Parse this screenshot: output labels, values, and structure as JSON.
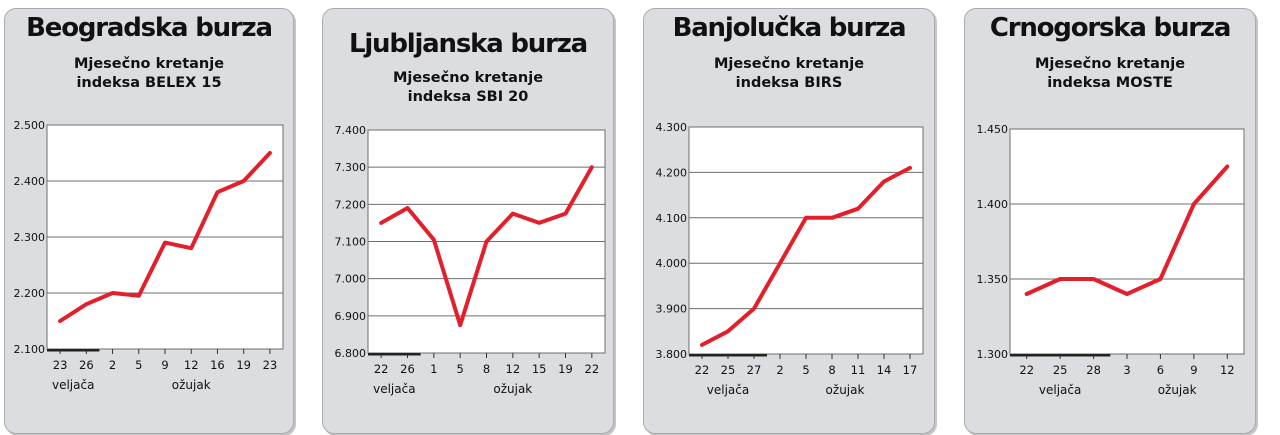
{
  "colors": {
    "panel_bg": "#dcdde0",
    "plot_bg": "#ffffff",
    "line": "#e21f2b",
    "grid": "#6d6d6d"
  },
  "panels": [
    {
      "title": "Beogradska burza",
      "subtitle_line1": "Mjesečno kretanje",
      "subtitle_line2": "indeksa BELEX 15"
    },
    {
      "title": "Ljubljanska burza",
      "subtitle_line1": "Mjesečno kretanje",
      "subtitle_line2": "indeksa SBI 20"
    },
    {
      "title": "Banjolučka burza",
      "subtitle_line1": "Mjesečno kretanje",
      "subtitle_line2": "indeksa BIRS"
    },
    {
      "title": "Crnogorska burza",
      "subtitle_line1": "Mjesečno kretanje",
      "subtitle_line2": "indeksa MOSTE"
    }
  ],
  "chart_data": [
    {
      "type": "line",
      "title": "Beogradska burza",
      "subtitle": "Mjesečno kretanje indeksa BELEX 15",
      "categories": [
        "23",
        "26",
        "2",
        "5",
        "9",
        "12",
        "16",
        "19",
        "23"
      ],
      "values": [
        2150,
        2180,
        2200,
        2195,
        2290,
        2280,
        2380,
        2400,
        2450
      ],
      "ylim": [
        2100,
        2500
      ],
      "yticks": [
        2100,
        2200,
        2300,
        2400,
        2500
      ],
      "ytick_labels": [
        "2.100",
        "2.200",
        "2.300",
        "2.400",
        "2.500"
      ],
      "groups": [
        {
          "label": "veljača",
          "from": 0,
          "to": 1
        },
        {
          "label": "ožujak",
          "from": 2,
          "to": 8
        }
      ],
      "grid": "horizontal"
    },
    {
      "type": "line",
      "title": "Ljubljanska burza",
      "subtitle": "Mjesečno kretanje indeksa SBI 20",
      "categories": [
        "22",
        "26",
        "1",
        "5",
        "8",
        "12",
        "15",
        "19",
        "22"
      ],
      "values": [
        7150,
        7190,
        7105,
        6875,
        7100,
        7175,
        7150,
        7175,
        7300
      ],
      "ylim": [
        6800,
        7400
      ],
      "yticks": [
        6800,
        6900,
        7000,
        7100,
        7200,
        7300,
        7400
      ],
      "ytick_labels": [
        "6.800",
        "6.900",
        "7.000",
        "7.100",
        "7.200",
        "7.300",
        "7.400"
      ],
      "groups": [
        {
          "label": "veljača",
          "from": 0,
          "to": 1
        },
        {
          "label": "ožujak",
          "from": 2,
          "to": 8
        }
      ],
      "grid": "horizontal"
    },
    {
      "type": "line",
      "title": "Banjolučka burza",
      "subtitle": "Mjesečno kretanje indeksa BIRS",
      "categories": [
        "22",
        "25",
        "27",
        "2",
        "5",
        "8",
        "11",
        "14",
        "17"
      ],
      "values": [
        3820,
        3850,
        3900,
        4000,
        4100,
        4100,
        4120,
        4180,
        4210
      ],
      "ylim": [
        3800,
        4300
      ],
      "yticks": [
        3800,
        3900,
        4000,
        4100,
        4200,
        4300
      ],
      "ytick_labels": [
        "3.800",
        "3.900",
        "4.000",
        "4.100",
        "4.200",
        "4.300"
      ],
      "groups": [
        {
          "label": "veljača",
          "from": 0,
          "to": 2
        },
        {
          "label": "ožujak",
          "from": 3,
          "to": 8
        }
      ],
      "grid": "horizontal"
    },
    {
      "type": "line",
      "title": "Crnogorska burza",
      "subtitle": "Mjesečno kretanje indeksa MOSTE",
      "categories": [
        "22",
        "25",
        "28",
        "3",
        "6",
        "9",
        "12"
      ],
      "values": [
        1.34,
        1.35,
        1.35,
        1.34,
        1.35,
        1.4,
        1.425
      ],
      "ylim": [
        1.3,
        1.45
      ],
      "yticks": [
        1.3,
        1.35,
        1.4,
        1.45
      ],
      "ytick_labels": [
        "1.300",
        "1.350",
        "1.400",
        "1.450"
      ],
      "groups": [
        {
          "label": "veljača",
          "from": 0,
          "to": 2
        },
        {
          "label": "ožujak",
          "from": 3,
          "to": 6
        }
      ],
      "grid": "horizontal"
    }
  ]
}
